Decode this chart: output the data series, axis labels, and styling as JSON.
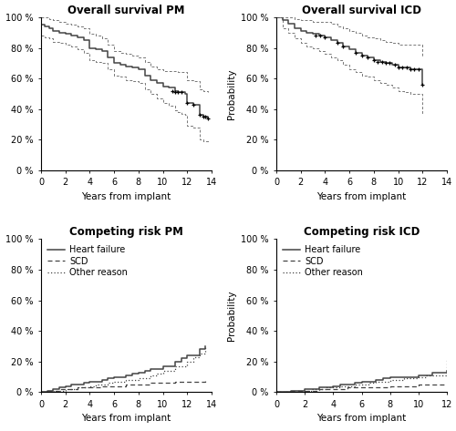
{
  "titles": [
    "Overall survival PM",
    "Overall survival ICD",
    "Competing risk PM",
    "Competing risk ICD"
  ],
  "xlabel": "Years from implant",
  "ylabel": "Probability",
  "ytick_labels_os": [
    "0 %",
    "20 %",
    "40 %",
    "60 %",
    "80 %",
    "100 %"
  ],
  "yticks_os": [
    0,
    20,
    40,
    60,
    80,
    100
  ],
  "ytick_labels_cr": [
    "0 %",
    "20 %",
    "40 %",
    "60 %",
    "80 %",
    "100 %"
  ],
  "yticks_cr": [
    0,
    20,
    40,
    60,
    80,
    100
  ],
  "xticks_pm": [
    0,
    2,
    4,
    6,
    8,
    10,
    12,
    14
  ],
  "xticks_icd": [
    0,
    2,
    4,
    6,
    8,
    10,
    12
  ],
  "xlim_pm": [
    0,
    14
  ],
  "xlim_icd": [
    0,
    12
  ],
  "ylim_os": [
    0,
    100
  ],
  "ylim_cr": [
    0,
    100
  ],
  "line_color": "#444444",
  "ci_color": "#777777",
  "legend_labels": [
    "Heart failure",
    "SCD",
    "Other reason"
  ],
  "pm_os_x": [
    0,
    0.3,
    0.7,
    1.0,
    1.5,
    2.0,
    2.5,
    3.0,
    3.5,
    4.0,
    4.5,
    5.0,
    5.5,
    6.0,
    6.5,
    7.0,
    7.5,
    8.0,
    8.5,
    9.0,
    9.5,
    10.0,
    10.5,
    11.0,
    11.2,
    11.5,
    11.8,
    12.0,
    12.5,
    13.0,
    13.3,
    13.7
  ],
  "pm_os_y": [
    95,
    94,
    93,
    91,
    90,
    89,
    88,
    87,
    85,
    80,
    79,
    78,
    74,
    70,
    69,
    68,
    67,
    66,
    62,
    59,
    57,
    55,
    54,
    52,
    51,
    51,
    50,
    44,
    43,
    36,
    35,
    34
  ],
  "pm_os_lo": [
    88,
    87,
    86,
    84,
    83,
    82,
    81,
    79,
    77,
    72,
    71,
    70,
    66,
    62,
    61,
    59,
    58,
    57,
    53,
    50,
    47,
    44,
    42,
    39,
    38,
    37,
    36,
    29,
    28,
    20,
    19,
    18
  ],
  "pm_os_hi": [
    100,
    100,
    99,
    98,
    97,
    96,
    95,
    94,
    93,
    89,
    88,
    86,
    82,
    78,
    77,
    76,
    75,
    74,
    71,
    68,
    66,
    65,
    65,
    65,
    64,
    64,
    64,
    59,
    58,
    53,
    52,
    51
  ],
  "pm_os_cens": [
    [
      10.8,
      52
    ],
    [
      11.0,
      51
    ],
    [
      11.2,
      51
    ],
    [
      11.5,
      51
    ],
    [
      12.0,
      44
    ],
    [
      12.5,
      43
    ],
    [
      13.0,
      36
    ],
    [
      13.3,
      35
    ],
    [
      13.5,
      35
    ],
    [
      13.7,
      34
    ]
  ],
  "icd_os_x": [
    0,
    0.5,
    1.0,
    1.5,
    2.0,
    2.5,
    3.0,
    3.5,
    4.0,
    4.5,
    5.0,
    5.5,
    6.0,
    6.5,
    7.0,
    7.5,
    8.0,
    8.5,
    9.0,
    9.5,
    10.0,
    10.5,
    11.0,
    11.5,
    12.0
  ],
  "icd_os_y": [
    100,
    98,
    96,
    93,
    91,
    90,
    89,
    88,
    87,
    85,
    83,
    81,
    79,
    77,
    75,
    74,
    72,
    71,
    70,
    69,
    67,
    67,
    66,
    66,
    56
  ],
  "icd_os_lo": [
    100,
    93,
    90,
    86,
    83,
    81,
    80,
    78,
    76,
    74,
    72,
    69,
    66,
    64,
    62,
    61,
    59,
    57,
    56,
    54,
    52,
    51,
    50,
    50,
    37
  ],
  "icd_os_hi": [
    100,
    100,
    100,
    99,
    98,
    98,
    97,
    97,
    97,
    96,
    94,
    93,
    91,
    90,
    88,
    87,
    86,
    85,
    84,
    83,
    82,
    82,
    82,
    82,
    74
  ],
  "icd_os_cens": [
    [
      3.2,
      88
    ],
    [
      3.6,
      88
    ],
    [
      4.0,
      87
    ],
    [
      5.0,
      83
    ],
    [
      5.5,
      81
    ],
    [
      6.5,
      77
    ],
    [
      7.0,
      75
    ],
    [
      7.5,
      74
    ],
    [
      8.0,
      72
    ],
    [
      8.3,
      71
    ],
    [
      8.7,
      71
    ],
    [
      9.0,
      70
    ],
    [
      9.3,
      70
    ],
    [
      9.7,
      69
    ],
    [
      10.0,
      67
    ],
    [
      10.3,
      67
    ],
    [
      10.7,
      67
    ],
    [
      11.0,
      66
    ],
    [
      11.3,
      66
    ],
    [
      11.7,
      66
    ],
    [
      12.0,
      56
    ]
  ],
  "pm_hf_x": [
    0,
    0.5,
    1.0,
    1.5,
    2.0,
    2.5,
    3.0,
    3.5,
    4.0,
    4.5,
    5.0,
    5.5,
    6.0,
    6.5,
    7.0,
    7.5,
    8.0,
    8.5,
    9.0,
    10.0,
    11.0,
    11.5,
    12.0,
    13.0,
    13.5
  ],
  "pm_hf_y": [
    0,
    1,
    2,
    3,
    4,
    5,
    5,
    6,
    7,
    7,
    8,
    9,
    10,
    10,
    11,
    12,
    13,
    14,
    15,
    17,
    20,
    22,
    24,
    28,
    30
  ],
  "pm_scd_x": [
    0,
    0.5,
    1.0,
    1.5,
    2.0,
    2.5,
    3.0,
    4.0,
    5.0,
    6.0,
    7.0,
    8.0,
    9.0,
    10.0,
    11.0,
    12.0,
    13.0,
    13.5
  ],
  "pm_scd_y": [
    0,
    1,
    1,
    2,
    2,
    2,
    3,
    3,
    4,
    4,
    5,
    5,
    6,
    6,
    7,
    7,
    7,
    8
  ],
  "pm_or_x": [
    0,
    0.5,
    1.0,
    1.5,
    2.0,
    2.5,
    3.0,
    3.5,
    4.0,
    4.5,
    5.0,
    5.5,
    6.0,
    7.0,
    8.0,
    9.0,
    9.5,
    10.0,
    11.0,
    12.0,
    12.5,
    13.0,
    13.5
  ],
  "pm_or_y": [
    0,
    0,
    1,
    1,
    2,
    2,
    3,
    3,
    4,
    5,
    5,
    6,
    7,
    8,
    9,
    11,
    12,
    14,
    17,
    20,
    23,
    25,
    30
  ],
  "icd_hf_x": [
    0,
    0.5,
    1.0,
    1.5,
    2.0,
    2.5,
    3.0,
    3.5,
    4.0,
    4.5,
    5.0,
    5.5,
    6.0,
    6.5,
    7.0,
    7.5,
    8.0,
    9.0,
    10.0,
    11.0,
    12.0
  ],
  "icd_hf_y": [
    0,
    0,
    1,
    1,
    2,
    2,
    3,
    3,
    4,
    5,
    5,
    6,
    7,
    7,
    8,
    9,
    10,
    10,
    11,
    13,
    14
  ],
  "icd_scd_x": [
    0,
    0.5,
    1.0,
    2.0,
    3.0,
    4.0,
    5.0,
    6.0,
    7.0,
    8.0,
    9.0,
    10.0,
    11.0,
    12.0
  ],
  "icd_scd_y": [
    0,
    0,
    1,
    1,
    2,
    2,
    3,
    3,
    3,
    4,
    4,
    5,
    5,
    5
  ],
  "icd_or_x": [
    0,
    0.5,
    1.0,
    1.5,
    2.0,
    2.5,
    3.0,
    3.5,
    4.0,
    4.5,
    5.0,
    5.5,
    6.0,
    6.5,
    7.0,
    8.0,
    9.0,
    10.0,
    10.5,
    11.0,
    12.0
  ],
  "icd_or_y": [
    0,
    0,
    0,
    1,
    1,
    2,
    2,
    3,
    3,
    4,
    4,
    5,
    5,
    6,
    7,
    8,
    9,
    10,
    11,
    11,
    21
  ],
  "title_fontsize": 8.5,
  "axis_label_fontsize": 7.5,
  "tick_fontsize": 7,
  "legend_fontsize": 7
}
